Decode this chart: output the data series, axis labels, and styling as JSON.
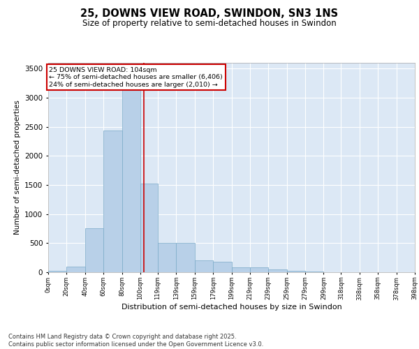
{
  "title_line1": "25, DOWNS VIEW ROAD, SWINDON, SN3 1NS",
  "title_line2": "Size of property relative to semi-detached houses in Swindon",
  "xlabel": "Distribution of semi-detached houses by size in Swindon",
  "ylabel": "Number of semi-detached properties",
  "footnote": "Contains HM Land Registry data © Crown copyright and database right 2025.\nContains public sector information licensed under the Open Government Licence v3.0.",
  "annotation_title": "25 DOWNS VIEW ROAD: 104sqm",
  "annotation_line2": "← 75% of semi-detached houses are smaller (6,406)",
  "annotation_line3": "24% of semi-detached houses are larger (2,010) →",
  "property_size": 104,
  "bin_edges": [
    0,
    20,
    40,
    60,
    80,
    100,
    119,
    139,
    159,
    179,
    199,
    219,
    239,
    259,
    279,
    299,
    318,
    338,
    358,
    378,
    398
  ],
  "bar_heights": [
    30,
    100,
    760,
    2440,
    3250,
    1520,
    510,
    510,
    200,
    185,
    85,
    80,
    50,
    30,
    10,
    5,
    2,
    1,
    1,
    0
  ],
  "bar_color": "#b8d0e8",
  "bar_edge_color": "#7aaac8",
  "vline_color": "#cc0000",
  "fig_bg_color": "#ffffff",
  "plot_bg_color": "#dce8f5",
  "annotation_box_color": "#ffffff",
  "annotation_border_color": "#cc0000",
  "ylim": [
    0,
    3600
  ],
  "yticks": [
    0,
    500,
    1000,
    1500,
    2000,
    2500,
    3000,
    3500
  ],
  "tick_labels": [
    "0sqm",
    "20sqm",
    "40sqm",
    "60sqm",
    "80sqm",
    "100sqm",
    "119sqm",
    "139sqm",
    "159sqm",
    "179sqm",
    "199sqm",
    "219sqm",
    "239sqm",
    "259sqm",
    "279sqm",
    "299sqm",
    "318sqm",
    "338sqm",
    "358sqm",
    "378sqm",
    "398sqm"
  ]
}
